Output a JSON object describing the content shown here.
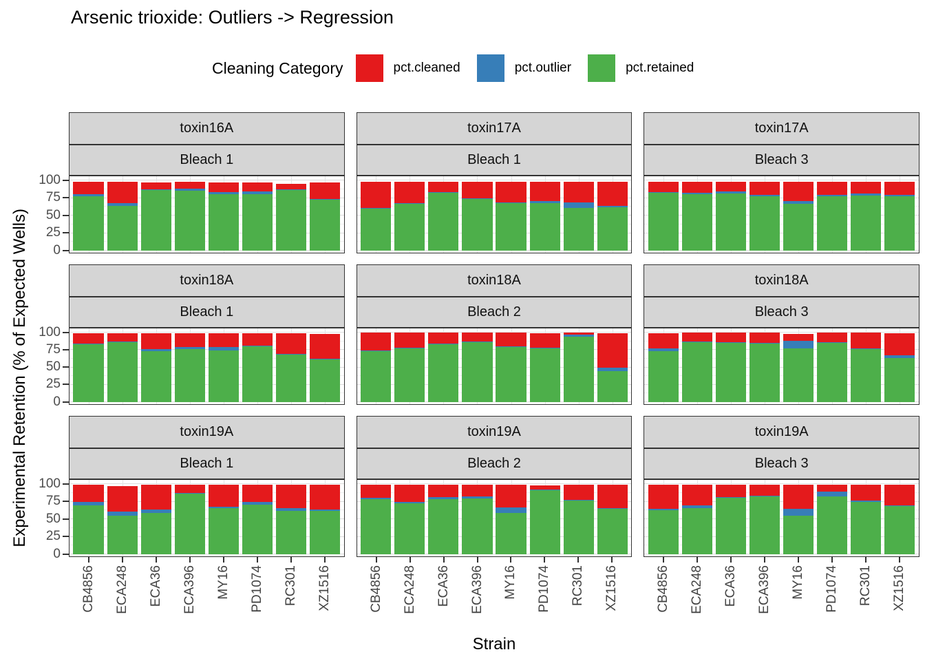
{
  "chart_data": {
    "type": "bar",
    "stacked": true,
    "title": "Arsenic trioxide: Outliers -> Regression",
    "legend_title": "Cleaning Category",
    "xlabel": "Strain",
    "ylabel": "Experimental Retention (% of Expected Wells)",
    "ylim": [
      0,
      100
    ],
    "yticks": [
      100,
      75,
      50,
      25,
      0
    ],
    "grid": true,
    "legend_position": "top",
    "categories": [
      "CB4856",
      "ECA248",
      "ECA36",
      "ECA396",
      "MY16",
      "PD1074",
      "RC301",
      "XZ1516"
    ],
    "legend": [
      {
        "label": "pct.cleaned",
        "color": "#E41A1C"
      },
      {
        "label": "pct.outlier",
        "color": "#377EB8"
      },
      {
        "label": "pct.retained",
        "color": "#4DAF4A"
      }
    ],
    "colors": {
      "pct.cleaned": "#E41A1C",
      "pct.outlier": "#377EB8",
      "pct.retained": "#4DAF4A"
    },
    "stack_order_bottom_to_top": [
      "pct.retained",
      "pct.outlier",
      "pct.cleaned"
    ],
    "facet_layout": {
      "rows": 3,
      "cols": 3,
      "strip_levels": [
        "toxin",
        "bleach"
      ]
    },
    "strip_bg": "#D5D5D5",
    "panel_bg": "#FFFFFF",
    "facets": [
      {
        "row": 1,
        "col": 1,
        "toxin": "toxin16A",
        "bleach": "Bleach 1",
        "series": {
          "pct.retained": [
            77,
            64,
            86,
            85,
            80,
            80,
            86,
            73
          ],
          "pct.outlier": [
            3,
            4,
            1,
            3,
            3,
            4,
            1,
            1
          ],
          "pct.cleaned": [
            18,
            30,
            10,
            10,
            14,
            13,
            8,
            23
          ]
        }
      },
      {
        "row": 1,
        "col": 2,
        "toxin": "toxin17A",
        "bleach": "Bleach 1",
        "series": {
          "pct.retained": [
            60,
            67,
            82,
            74,
            68,
            68,
            61,
            62
          ],
          "pct.outlier": [
            1,
            1,
            1,
            1,
            1,
            3,
            8,
            2
          ],
          "pct.cleaned": [
            37,
            30,
            15,
            23,
            29,
            27,
            29,
            34
          ]
        }
      },
      {
        "row": 1,
        "col": 3,
        "toxin": "toxin17A",
        "bleach": "Bleach 3",
        "series": {
          "pct.retained": [
            82,
            80,
            81,
            77,
            67,
            77,
            78,
            77
          ],
          "pct.outlier": [
            1,
            2,
            3,
            2,
            4,
            2,
            3,
            2
          ],
          "pct.cleaned": [
            15,
            16,
            14,
            19,
            27,
            19,
            17,
            19
          ]
        }
      },
      {
        "row": 2,
        "col": 1,
        "toxin": "toxin18A",
        "bleach": "Bleach 1",
        "series": {
          "pct.retained": [
            83,
            86,
            73,
            76,
            74,
            80,
            68,
            61
          ],
          "pct.outlier": [
            1,
            1,
            3,
            3,
            5,
            1,
            1,
            1
          ],
          "pct.cleaned": [
            15,
            12,
            23,
            20,
            20,
            18,
            30,
            36
          ]
        }
      },
      {
        "row": 2,
        "col": 2,
        "toxin": "toxin18A",
        "bleach": "Bleach 2",
        "series": {
          "pct.retained": [
            73,
            77,
            83,
            86,
            79,
            77,
            94,
            45
          ],
          "pct.outlier": [
            1,
            1,
            1,
            1,
            1,
            1,
            3,
            5
          ],
          "pct.cleaned": [
            26,
            22,
            16,
            13,
            20,
            21,
            3,
            49
          ]
        }
      },
      {
        "row": 2,
        "col": 3,
        "toxin": "toxin18A",
        "bleach": "Bleach 3",
        "series": {
          "pct.retained": [
            73,
            86,
            85,
            84,
            77,
            85,
            76,
            63
          ],
          "pct.outlier": [
            4,
            1,
            1,
            1,
            11,
            1,
            1,
            4
          ],
          "pct.cleaned": [
            22,
            13,
            14,
            15,
            10,
            14,
            23,
            32
          ]
        }
      },
      {
        "row": 3,
        "col": 1,
        "toxin": "toxin19A",
        "bleach": "Bleach 1",
        "series": {
          "pct.retained": [
            70,
            55,
            59,
            86,
            66,
            71,
            62,
            62
          ],
          "pct.outlier": [
            5,
            6,
            5,
            1,
            2,
            4,
            4,
            2
          ],
          "pct.cleaned": [
            24,
            36,
            35,
            12,
            31,
            24,
            33,
            35
          ]
        }
      },
      {
        "row": 3,
        "col": 2,
        "toxin": "toxin19A",
        "bleach": "Bleach 2",
        "series": {
          "pct.retained": [
            78,
            73,
            78,
            79,
            59,
            91,
            76,
            65
          ],
          "pct.outlier": [
            2,
            2,
            3,
            3,
            8,
            1,
            1,
            1
          ],
          "pct.cleaned": [
            19,
            24,
            18,
            17,
            32,
            6,
            22,
            33
          ]
        }
      },
      {
        "row": 3,
        "col": 3,
        "toxin": "toxin19A",
        "bleach": "Bleach 3",
        "series": {
          "pct.retained": [
            63,
            66,
            80,
            82,
            55,
            82,
            75,
            69
          ],
          "pct.outlier": [
            2,
            4,
            1,
            1,
            10,
            7,
            1,
            1
          ],
          "pct.cleaned": [
            34,
            29,
            18,
            16,
            34,
            10,
            23,
            29
          ]
        }
      }
    ]
  }
}
